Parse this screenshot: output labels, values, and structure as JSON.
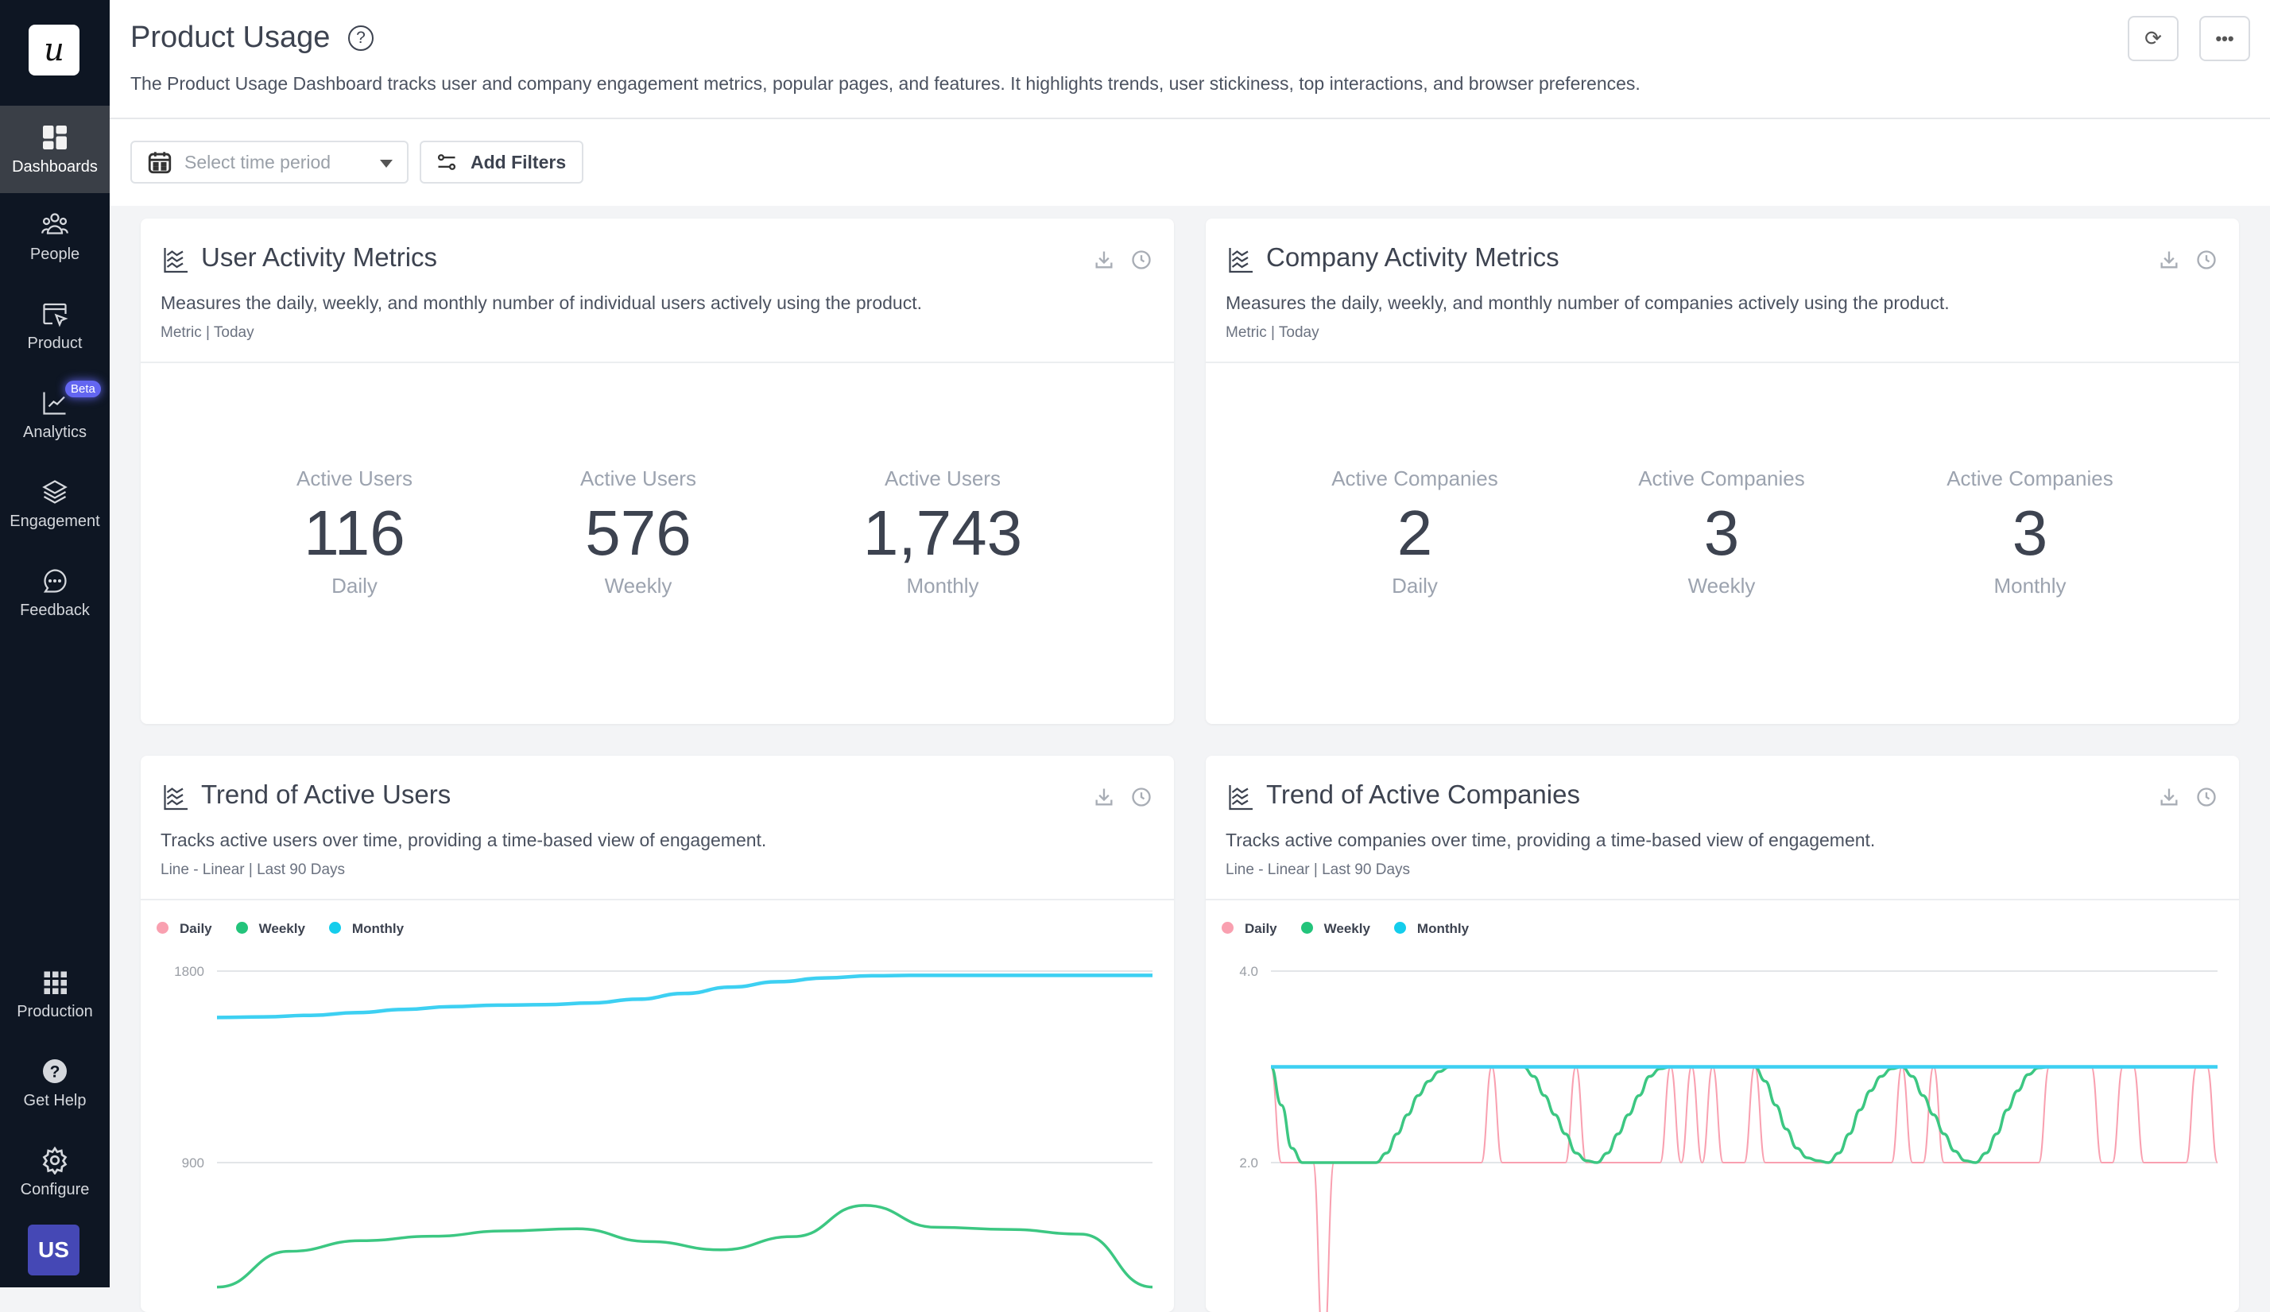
{
  "sidebar": {
    "logo": "u",
    "items": [
      {
        "label": "Dashboards",
        "icon": "dashboard-grid-icon",
        "active": true
      },
      {
        "label": "People",
        "icon": "people-icon"
      },
      {
        "label": "Product",
        "icon": "product-window-cursor-icon"
      },
      {
        "label": "Analytics",
        "icon": "line-chart-icon",
        "badge": "Beta"
      },
      {
        "label": "Engagement",
        "icon": "layers-icon"
      },
      {
        "label": "Feedback",
        "icon": "chat-bubble-icon"
      }
    ],
    "bottom": [
      {
        "label": "Production",
        "icon": "apps-grid-icon"
      },
      {
        "label": "Get Help",
        "icon": "help-circle-icon"
      },
      {
        "label": "Configure",
        "icon": "gear-icon"
      }
    ],
    "avatar": "US"
  },
  "header": {
    "title": "Product Usage",
    "description": "The Product Usage Dashboard tracks user and company engagement metrics, popular pages, and features. It highlights trends, user stickiness, top interactions, and browser preferences.",
    "time_placeholder": "Select time period",
    "add_filters": "Add Filters"
  },
  "cards": {
    "user_metrics": {
      "title": "User Activity Metrics",
      "description": "Measures the daily, weekly, and monthly number of individual users actively using the product.",
      "meta": "Metric | Today",
      "metrics": [
        {
          "label": "Active Users",
          "value": "116",
          "period": "Daily"
        },
        {
          "label": "Active Users",
          "value": "576",
          "period": "Weekly"
        },
        {
          "label": "Active Users",
          "value": "1,743",
          "period": "Monthly"
        }
      ]
    },
    "company_metrics": {
      "title": "Company Activity Metrics",
      "description": "Measures the daily, weekly, and monthly number of companies actively using the product.",
      "meta": "Metric | Today",
      "metrics": [
        {
          "label": "Active Companies",
          "value": "2",
          "period": "Daily"
        },
        {
          "label": "Active Companies",
          "value": "3",
          "period": "Weekly"
        },
        {
          "label": "Active Companies",
          "value": "3",
          "period": "Monthly"
        }
      ]
    },
    "trend_users": {
      "title": "Trend of Active Users",
      "description": "Tracks active users over time, providing a time-based view of engagement.",
      "meta": "Line - Linear | Last 90 Days"
    },
    "trend_companies": {
      "title": "Trend of Active Companies",
      "description": "Tracks active companies over time, providing a time-based view of engagement.",
      "meta": "Line - Linear | Last 90 Days"
    }
  },
  "colors": {
    "daily": "#f9a0b0",
    "weekly": "#3cc782",
    "monthly": "#3dd0f2",
    "accent": "#6366f1"
  },
  "chart_data": [
    {
      "type": "line",
      "legend": [
        "Daily",
        "Weekly",
        "Monthly"
      ],
      "legend_position": "top-left",
      "grid": true,
      "yticks": [
        "900",
        "1800"
      ],
      "ytick_values": [
        900,
        1800
      ],
      "ylim": [
        0,
        1800
      ],
      "series": [
        {
          "name": "Weekly",
          "values": [
            315,
            483,
            533,
            554,
            579,
            589,
            529,
            490,
            552,
            699,
            596,
            586,
            564,
            315
          ]
        },
        {
          "name": "Monthly",
          "values": [
            1582,
            1585,
            1592,
            1605,
            1620,
            1633,
            1640,
            1642,
            1650,
            1668,
            1695,
            1725,
            1750,
            1768,
            1778,
            1780,
            1780,
            1780,
            1780,
            1780,
            1780
          ]
        }
      ]
    },
    {
      "type": "line",
      "legend": [
        "Daily",
        "Weekly",
        "Monthly"
      ],
      "legend_position": "top-left",
      "grid": true,
      "yticks": [
        "2.0",
        "4.0"
      ],
      "ytick_values": [
        2,
        4
      ],
      "ylim": [
        0,
        4
      ],
      "series": [
        {
          "name": "Daily",
          "values": [
            3,
            2,
            2,
            2,
            2,
            0,
            2,
            2,
            2,
            2,
            2,
            2,
            2,
            2,
            2,
            2,
            2,
            2,
            2,
            2,
            2,
            3,
            2,
            2,
            2,
            2,
            2,
            2,
            2,
            3,
            2,
            2,
            2,
            2,
            2,
            2,
            2,
            2,
            3,
            2,
            3,
            2,
            3,
            2,
            2,
            2,
            3,
            2,
            2,
            2,
            2,
            2,
            2,
            2,
            2,
            2,
            2,
            2,
            2,
            2,
            3,
            2,
            2,
            3,
            2,
            2,
            2,
            2,
            2,
            2,
            2,
            2,
            2,
            2,
            3,
            3,
            3,
            3,
            3,
            2,
            2,
            3,
            3,
            2,
            2,
            2,
            2,
            2,
            3,
            3,
            2
          ]
        },
        {
          "name": "Weekly",
          "values": [
            3,
            2.6,
            2.15,
            2,
            2,
            2,
            2,
            2,
            2,
            2,
            2,
            2.1,
            2.3,
            2.5,
            2.7,
            2.85,
            2.95,
            3,
            3,
            3,
            3,
            3,
            3,
            3,
            3,
            2.9,
            2.7,
            2.5,
            2.3,
            2.1,
            2.02,
            2,
            2.1,
            2.3,
            2.5,
            2.7,
            2.9,
            2.98,
            3,
            3,
            3,
            3,
            3,
            3,
            3,
            3,
            3,
            2.85,
            2.6,
            2.35,
            2.15,
            2.05,
            2.02,
            2,
            2.1,
            2.3,
            2.55,
            2.75,
            2.9,
            2.98,
            3,
            2.9,
            2.7,
            2.5,
            2.3,
            2.12,
            2.02,
            2,
            2.1,
            2.3,
            2.55,
            2.75,
            2.92,
            2.99,
            3,
            3,
            3,
            3,
            3,
            3,
            3,
            3,
            3,
            3,
            3,
            3,
            3,
            3,
            3,
            3,
            3
          ]
        },
        {
          "name": "Monthly",
          "values": [
            3,
            3,
            3,
            3,
            3,
            3,
            3,
            3,
            3,
            3,
            3,
            3,
            3,
            3,
            3,
            3,
            3,
            3,
            3,
            3,
            3,
            3,
            3,
            3,
            3,
            3,
            3,
            3,
            3,
            3,
            3,
            3,
            3,
            3,
            3,
            3,
            3,
            3,
            3,
            3,
            3,
            3,
            3,
            3,
            3,
            3,
            3,
            3,
            3,
            3,
            3,
            3,
            3,
            3,
            3,
            3,
            3,
            3,
            3,
            3,
            3,
            3,
            3,
            3,
            3,
            3,
            3,
            3,
            3,
            3,
            3,
            3,
            3,
            3,
            3,
            3,
            3,
            3,
            3,
            3,
            3,
            3,
            3,
            3,
            3,
            3,
            3,
            3,
            3,
            3,
            3
          ]
        }
      ]
    }
  ]
}
